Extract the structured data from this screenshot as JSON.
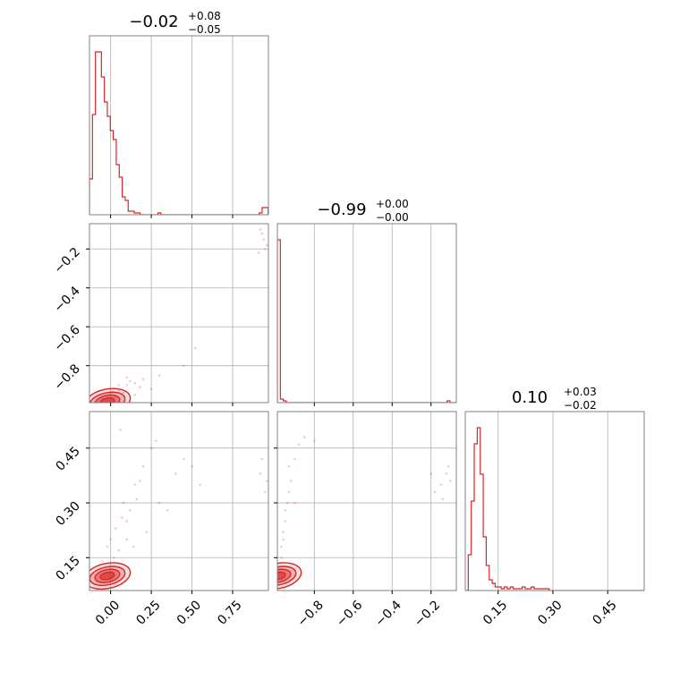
{
  "colors": {
    "series": "#d62728",
    "grid": "#b0b0b0",
    "frame": "#808080"
  },
  "chart_data": [
    {
      "type": "histogram",
      "panel": "hist-param-1",
      "title": {
        "value": "−0.02",
        "plus": "+0.08",
        "minus": "−0.05"
      },
      "xlim": [
        -0.13,
        0.97
      ],
      "xticks": [
        0.0,
        0.25,
        0.5,
        0.75
      ],
      "xtick_labels": [],
      "grid": true,
      "bins": {
        "start": -0.13,
        "width": 0.0183
      },
      "heights": [
        0.2,
        0.56,
        0.91,
        0.91,
        0.77,
        0.63,
        0.55,
        0.47,
        0.42,
        0.28,
        0.21,
        0.1,
        0.08,
        0.02,
        0.02,
        0.01,
        0.01,
        0.0,
        0.0,
        0.0,
        0.0,
        0.0,
        0.0,
        0.01,
        0.0,
        0.0,
        0.0,
        0.0,
        0.0,
        0.0,
        0.0,
        0.0,
        0.0,
        0.0,
        0.0,
        0.0,
        0.0,
        0.0,
        0.0,
        0.0,
        0.0,
        0.0,
        0.0,
        0.0,
        0.0,
        0.0,
        0.0,
        0.0,
        0.0,
        0.0,
        0.0,
        0.0,
        0.0,
        0.0,
        0.0,
        0.0,
        0.0,
        0.01,
        0.04,
        0.04
      ]
    },
    {
      "type": "scatter",
      "panel": "scatter-param-1-vs-2",
      "xlim": [
        -0.13,
        0.97
      ],
      "ylim": [
        -0.99,
        -0.07
      ],
      "xticks": [
        0.0,
        0.25,
        0.5,
        0.75
      ],
      "yticks": [
        -0.2,
        -0.4,
        -0.6,
        -0.8
      ],
      "xtick_labels": [],
      "ytick_labels": [
        "−0.2",
        "−0.4",
        "−0.6",
        "−0.8"
      ],
      "grid": true,
      "contour_center": [
        -0.02,
        -0.985
      ],
      "points": [
        [
          0.92,
          -0.1
        ],
        [
          0.94,
          -0.15
        ],
        [
          0.95,
          -0.2
        ],
        [
          0.93,
          -0.12
        ],
        [
          0.96,
          -0.18
        ],
        [
          0.91,
          -0.22
        ],
        [
          0.52,
          -0.71
        ],
        [
          0.45,
          -0.8
        ],
        [
          0.3,
          -0.85
        ],
        [
          0.2,
          -0.87
        ],
        [
          0.15,
          -0.89
        ],
        [
          0.1,
          -0.9
        ],
        [
          0.12,
          -0.88
        ],
        [
          0.05,
          -0.93
        ],
        [
          0.08,
          -0.94
        ],
        [
          0.03,
          -0.96
        ],
        [
          -0.05,
          -0.97
        ],
        [
          0.02,
          -0.98
        ],
        [
          0.15,
          -0.95
        ],
        [
          0.25,
          -0.92
        ],
        [
          0.1,
          -0.86
        ],
        [
          0.18,
          -0.91
        ],
        [
          0.05,
          -0.9
        ]
      ]
    },
    {
      "type": "histogram",
      "panel": "hist-param-2",
      "title": {
        "value": "−0.99",
        "plus": "+0.00",
        "minus": "−0.00"
      },
      "xlim": [
        -0.99,
        -0.07
      ],
      "xticks": [
        -0.8,
        -0.6,
        -0.4,
        -0.2
      ],
      "xtick_labels": [],
      "grid": true,
      "bins": {
        "start": -0.99,
        "width": 0.0153
      },
      "heights": [
        0.91,
        0.02,
        0.01,
        0.0,
        0.0,
        0.0,
        0.0,
        0.0,
        0.0,
        0.0,
        0.0,
        0.0,
        0.0,
        0.0,
        0.0,
        0.0,
        0.0,
        0.0,
        0.0,
        0.0,
        0.0,
        0.0,
        0.0,
        0.0,
        0.0,
        0.0,
        0.0,
        0.0,
        0.0,
        0.0,
        0.0,
        0.0,
        0.0,
        0.0,
        0.0,
        0.0,
        0.0,
        0.0,
        0.0,
        0.0,
        0.0,
        0.0,
        0.0,
        0.0,
        0.0,
        0.0,
        0.0,
        0.0,
        0.0,
        0.0,
        0.0,
        0.0,
        0.0,
        0.0,
        0.0,
        0.0,
        0.0,
        0.01,
        0.0,
        0.0
      ]
    },
    {
      "type": "scatter",
      "panel": "scatter-param-1-vs-3",
      "xlim": [
        -0.13,
        0.97
      ],
      "ylim": [
        0.06,
        0.55
      ],
      "xticks": [
        0.0,
        0.25,
        0.5,
        0.75
      ],
      "yticks": [
        0.15,
        0.3,
        0.45
      ],
      "xtick_labels": [
        "0.00",
        "0.25",
        "0.50",
        "0.75"
      ],
      "ytick_labels": [
        "0.15",
        "0.30",
        "0.45"
      ],
      "grid": true,
      "contour_center": [
        -0.02,
        0.1
      ],
      "points": [
        [
          0.05,
          0.17
        ],
        [
          0.1,
          0.25
        ],
        [
          0.08,
          0.3
        ],
        [
          0.15,
          0.35
        ],
        [
          0.2,
          0.4
        ],
        [
          0.25,
          0.45
        ],
        [
          0.28,
          0.47
        ],
        [
          0.12,
          0.28
        ],
        [
          0.18,
          0.36
        ],
        [
          0.3,
          0.3
        ],
        [
          0.4,
          0.38
        ],
        [
          0.45,
          0.42
        ],
        [
          0.5,
          0.4
        ],
        [
          0.0,
          0.2
        ],
        [
          0.02,
          0.15
        ],
        [
          -0.05,
          0.14
        ],
        [
          0.1,
          0.2
        ],
        [
          0.06,
          0.5
        ],
        [
          0.22,
          0.22
        ],
        [
          0.14,
          0.18
        ],
        [
          0.35,
          0.28
        ],
        [
          0.55,
          0.35
        ],
        [
          0.92,
          0.38
        ],
        [
          0.95,
          0.33
        ],
        [
          0.93,
          0.42
        ],
        [
          0.96,
          0.36
        ],
        [
          0.03,
          0.23
        ],
        [
          0.07,
          0.26
        ],
        [
          0.16,
          0.31
        ],
        [
          -0.02,
          0.18
        ]
      ]
    },
    {
      "type": "scatter",
      "panel": "scatter-param-2-vs-3",
      "xlim": [
        -0.99,
        -0.07
      ],
      "ylim": [
        0.06,
        0.55
      ],
      "xticks": [
        -0.8,
        -0.6,
        -0.4,
        -0.2
      ],
      "yticks": [
        0.15,
        0.3,
        0.45
      ],
      "xtick_labels": [
        "−0.8",
        "−0.6",
        "−0.4",
        "−0.2"
      ],
      "ytick_labels": [],
      "grid": true,
      "contour_center": [
        -0.985,
        0.1
      ],
      "points": [
        [
          -0.97,
          0.15
        ],
        [
          -0.96,
          0.2
        ],
        [
          -0.95,
          0.25
        ],
        [
          -0.94,
          0.3
        ],
        [
          -0.93,
          0.33
        ],
        [
          -0.92,
          0.36
        ],
        [
          -0.9,
          0.42
        ],
        [
          -0.88,
          0.46
        ],
        [
          -0.85,
          0.48
        ],
        [
          -0.8,
          0.47
        ],
        [
          -0.98,
          0.12
        ],
        [
          -0.97,
          0.18
        ],
        [
          -0.96,
          0.22
        ],
        [
          -0.95,
          0.28
        ],
        [
          -0.9,
          0.3
        ],
        [
          -0.93,
          0.4
        ],
        [
          -0.15,
          0.35
        ],
        [
          -0.12,
          0.38
        ],
        [
          -0.18,
          0.33
        ],
        [
          -0.1,
          0.36
        ],
        [
          -0.2,
          0.38
        ],
        [
          -0.14,
          0.31
        ],
        [
          -0.11,
          0.4
        ]
      ]
    },
    {
      "type": "histogram",
      "panel": "hist-param-3",
      "title": {
        "value": "0.10",
        "plus": "+0.03",
        "minus": "−0.02"
      },
      "xlim": [
        0.06,
        0.55
      ],
      "xticks": [
        0.15,
        0.3,
        0.45
      ],
      "xtick_labels": [
        "0.15",
        "0.30",
        "0.45"
      ],
      "grid": true,
      "bins": {
        "start": 0.06,
        "width": 0.0082
      },
      "heights": [
        0.0,
        0.2,
        0.5,
        0.82,
        0.91,
        0.65,
        0.3,
        0.14,
        0.06,
        0.04,
        0.02,
        0.02,
        0.01,
        0.02,
        0.01,
        0.02,
        0.01,
        0.01,
        0.01,
        0.02,
        0.01,
        0.01,
        0.02,
        0.01,
        0.01,
        0.01,
        0.01,
        0.01,
        0.0,
        0.0,
        0.0,
        0.0,
        0.0,
        0.0,
        0.0,
        0.0,
        0.0,
        0.0,
        0.0,
        0.0,
        0.0,
        0.0,
        0.0,
        0.0,
        0.0,
        0.0,
        0.0,
        0.0,
        0.0,
        0.0,
        0.0,
        0.0,
        0.0,
        0.0,
        0.0,
        0.0,
        0.0,
        0.0,
        0.0,
        0.0
      ]
    }
  ]
}
